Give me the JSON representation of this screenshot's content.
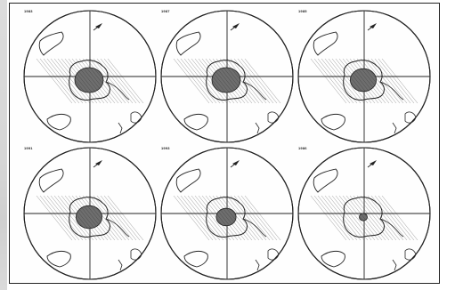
{
  "figure": {
    "panels": [
      {
        "label": "1983",
        "hole": "large"
      },
      {
        "label": "1987",
        "hole": "large"
      },
      {
        "label": "1985",
        "hole": "medium"
      },
      {
        "label": "1991",
        "hole": "medium"
      },
      {
        "label": "1993",
        "hole": "small"
      },
      {
        "label": "1986",
        "hole": "tiny"
      }
    ]
  },
  "colors": {
    "ink": "#222222",
    "hole_fill": "#6e6e6e",
    "background": "#ffffff"
  }
}
